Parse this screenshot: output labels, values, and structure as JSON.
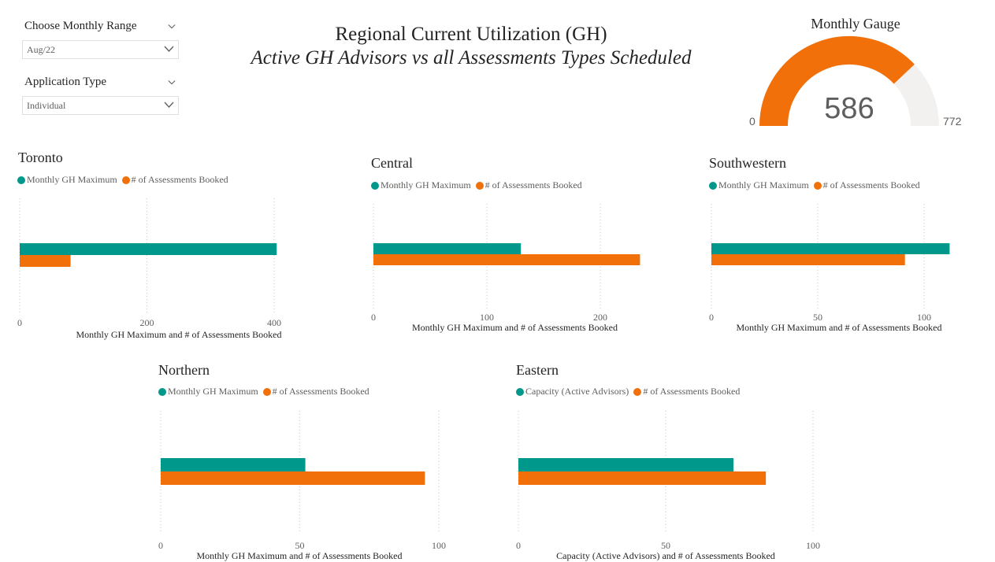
{
  "slicers": {
    "month": {
      "title": "Choose Monthly Range",
      "value": "Aug/22"
    },
    "application": {
      "title": "Application Type",
      "value": "Individual"
    }
  },
  "header": {
    "title": "Regional Current Utilization (GH)",
    "subtitle": "Active GH Advisors vs all Assessments Types Scheduled"
  },
  "gauge": {
    "title": "Monthly Gauge",
    "value": 586,
    "value_label": "586",
    "min": 0,
    "min_label": "0",
    "max": 772,
    "max_label": "772",
    "fill_color": "#f17009",
    "track_color": "#f2f1f0"
  },
  "colors": {
    "teal": "#01988c",
    "orange": "#f17009"
  },
  "chart_data": [
    {
      "type": "bar",
      "title": "Toronto",
      "series": [
        {
          "name": "Monthly GH Maximum",
          "values": [
            404
          ],
          "color": "#01988c"
        },
        {
          "name": "# of Assessments Booked",
          "values": [
            80
          ],
          "color": "#f17009"
        }
      ],
      "xlabel": "Monthly GH Maximum and # of Assessments Booked",
      "xlim": [
        0,
        400
      ],
      "ticks": [
        "0",
        "200",
        "400"
      ],
      "tick_values": [
        0,
        200,
        400
      ],
      "grid": true,
      "legend": "top-left"
    },
    {
      "type": "bar",
      "title": "Central",
      "series": [
        {
          "name": "Monthly GH Maximum",
          "values": [
            130
          ],
          "color": "#01988c"
        },
        {
          "name": "# of Assessments Booked",
          "values": [
            235
          ],
          "color": "#f17009"
        }
      ],
      "xlabel": "Monthly GH Maximum and # of Assessments Booked",
      "xlim": [
        0,
        200
      ],
      "ticks": [
        "0",
        "100",
        "200"
      ],
      "tick_values": [
        0,
        100,
        200
      ],
      "grid": true,
      "legend": "top-left"
    },
    {
      "type": "bar",
      "title": "Southwestern",
      "series": [
        {
          "name": "Monthly GH Maximum",
          "values": [
            112
          ],
          "color": "#01988c"
        },
        {
          "name": "# of Assessments Booked",
          "values": [
            91
          ],
          "color": "#f17009"
        }
      ],
      "xlabel": "Monthly GH Maximum and # of Assessments Booked",
      "xlim": [
        0,
        100
      ],
      "ticks": [
        "0",
        "50",
        "100"
      ],
      "tick_values": [
        0,
        50,
        100
      ],
      "grid": true,
      "legend": "top-left"
    },
    {
      "type": "bar",
      "title": "Northern",
      "series": [
        {
          "name": "Monthly GH Maximum",
          "values": [
            52
          ],
          "color": "#01988c"
        },
        {
          "name": "# of Assessments Booked",
          "values": [
            95
          ],
          "color": "#f17009"
        }
      ],
      "xlabel": "Monthly GH Maximum and # of Assessments Booked",
      "xlim": [
        0,
        100
      ],
      "ticks": [
        "0",
        "50",
        "100"
      ],
      "tick_values": [
        0,
        50,
        100
      ],
      "grid": true,
      "legend": "top-left"
    },
    {
      "type": "bar",
      "title": "Eastern",
      "series": [
        {
          "name": "Capacity (Active Advisors)",
          "values": [
            73
          ],
          "color": "#01988c"
        },
        {
          "name": "# of Assessments Booked",
          "values": [
            84
          ],
          "color": "#f17009"
        }
      ],
      "xlabel": "Capacity (Active Advisors) and # of Assessments Booked",
      "xlim": [
        0,
        100
      ],
      "ticks": [
        "0",
        "50",
        "100"
      ],
      "tick_values": [
        0,
        50,
        100
      ],
      "grid": true,
      "legend": "top-left"
    }
  ]
}
